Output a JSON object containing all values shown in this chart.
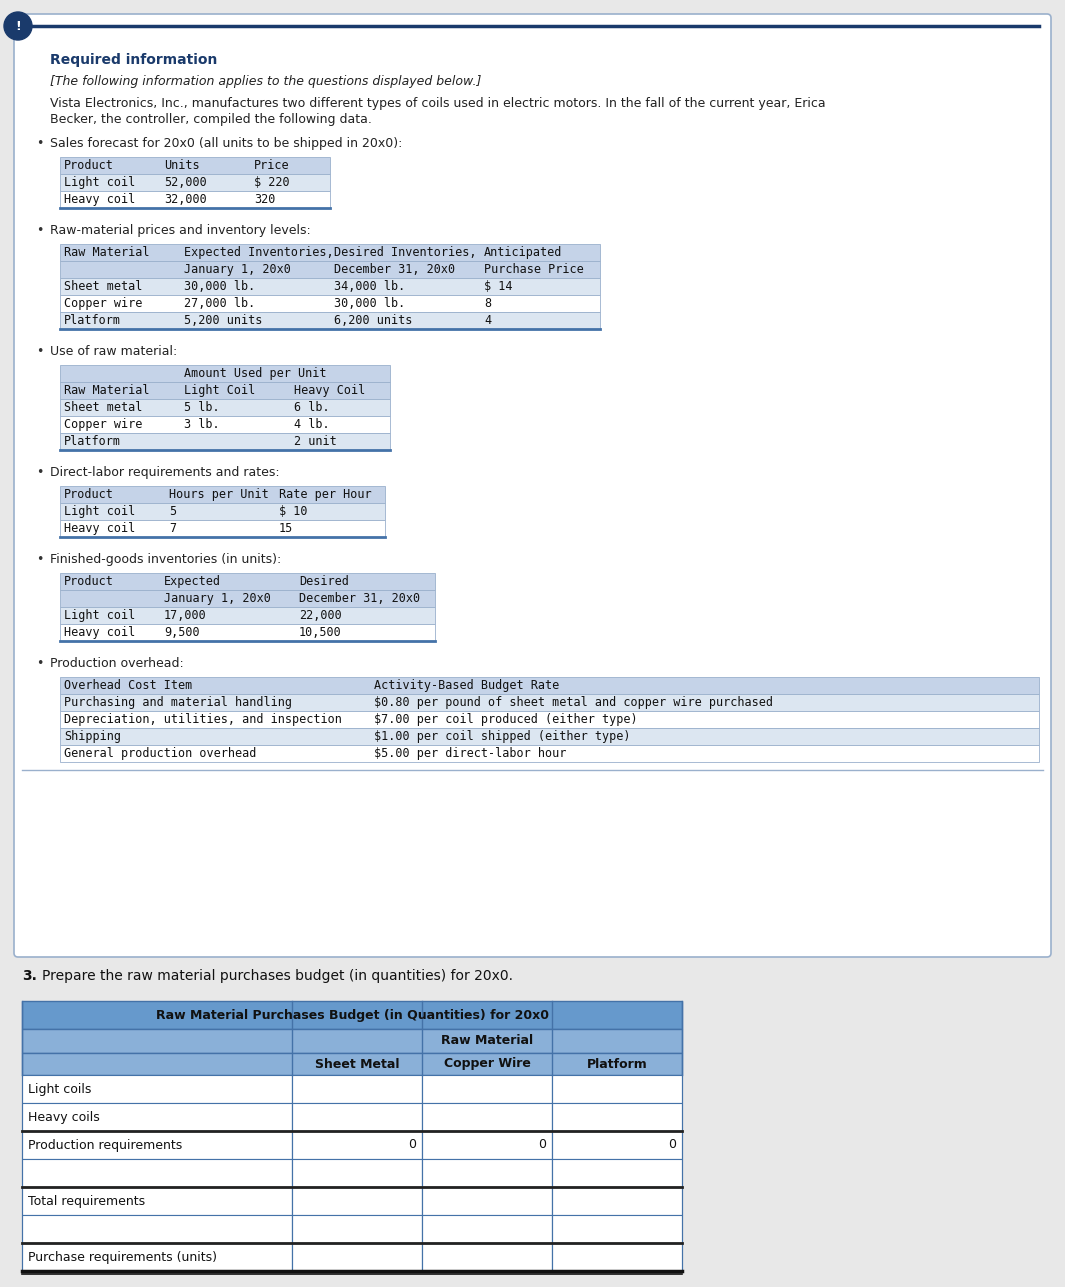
{
  "page_bg": "#e8e8e8",
  "card_bg": "#ffffff",
  "header_color": "#1a3a6b",
  "header_text": "Required information",
  "italic_text": "[The following information applies to the questions displayed below.]",
  "body_line1": "Vista Electronics, Inc., manufactures two different types of coils used in electric motors. In the fall of the current year, Erica",
  "body_line2": "Becker, the controller, compiled the following data.",
  "table_header_bg": "#c5d3e8",
  "table_data_bg": "#dce6f1",
  "table_border": "#7a9cc5",
  "mono_font": "DejaVu Sans Mono",
  "sans_font": "DejaVu Sans",
  "budget_title": "Raw Material Purchases Budget (in Quantities) for 20x0",
  "budget_col_header": "Raw Material",
  "budget_cols": [
    "Sheet Metal",
    "Copper Wire",
    "Platform"
  ],
  "budget_rows": [
    {
      "label": "Light coils",
      "values": [
        "",
        "",
        ""
      ],
      "bold": false,
      "thick_top": false
    },
    {
      "label": "Heavy coils",
      "values": [
        "",
        "",
        ""
      ],
      "bold": false,
      "thick_top": false
    },
    {
      "label": "Production requirements",
      "values": [
        "0",
        "0",
        "0"
      ],
      "bold": false,
      "thick_top": true
    },
    {
      "label": "",
      "values": [
        "",
        "",
        ""
      ],
      "bold": false,
      "thick_top": false
    },
    {
      "label": "Total requirements",
      "values": [
        "",
        "",
        ""
      ],
      "bold": false,
      "thick_top": true
    },
    {
      "label": "",
      "values": [
        "",
        "",
        ""
      ],
      "bold": false,
      "thick_top": false
    },
    {
      "label": "Purchase requirements (units)",
      "values": [
        "",
        "",
        ""
      ],
      "bold": false,
      "thick_top": true
    }
  ],
  "budget_title_bg": "#6699cc",
  "budget_subhdr_bg": "#8ab0d8",
  "budget_colhdr_bg": "#8ab0d8",
  "budget_row_bg": "#ffffff",
  "budget_border": "#4472a8"
}
